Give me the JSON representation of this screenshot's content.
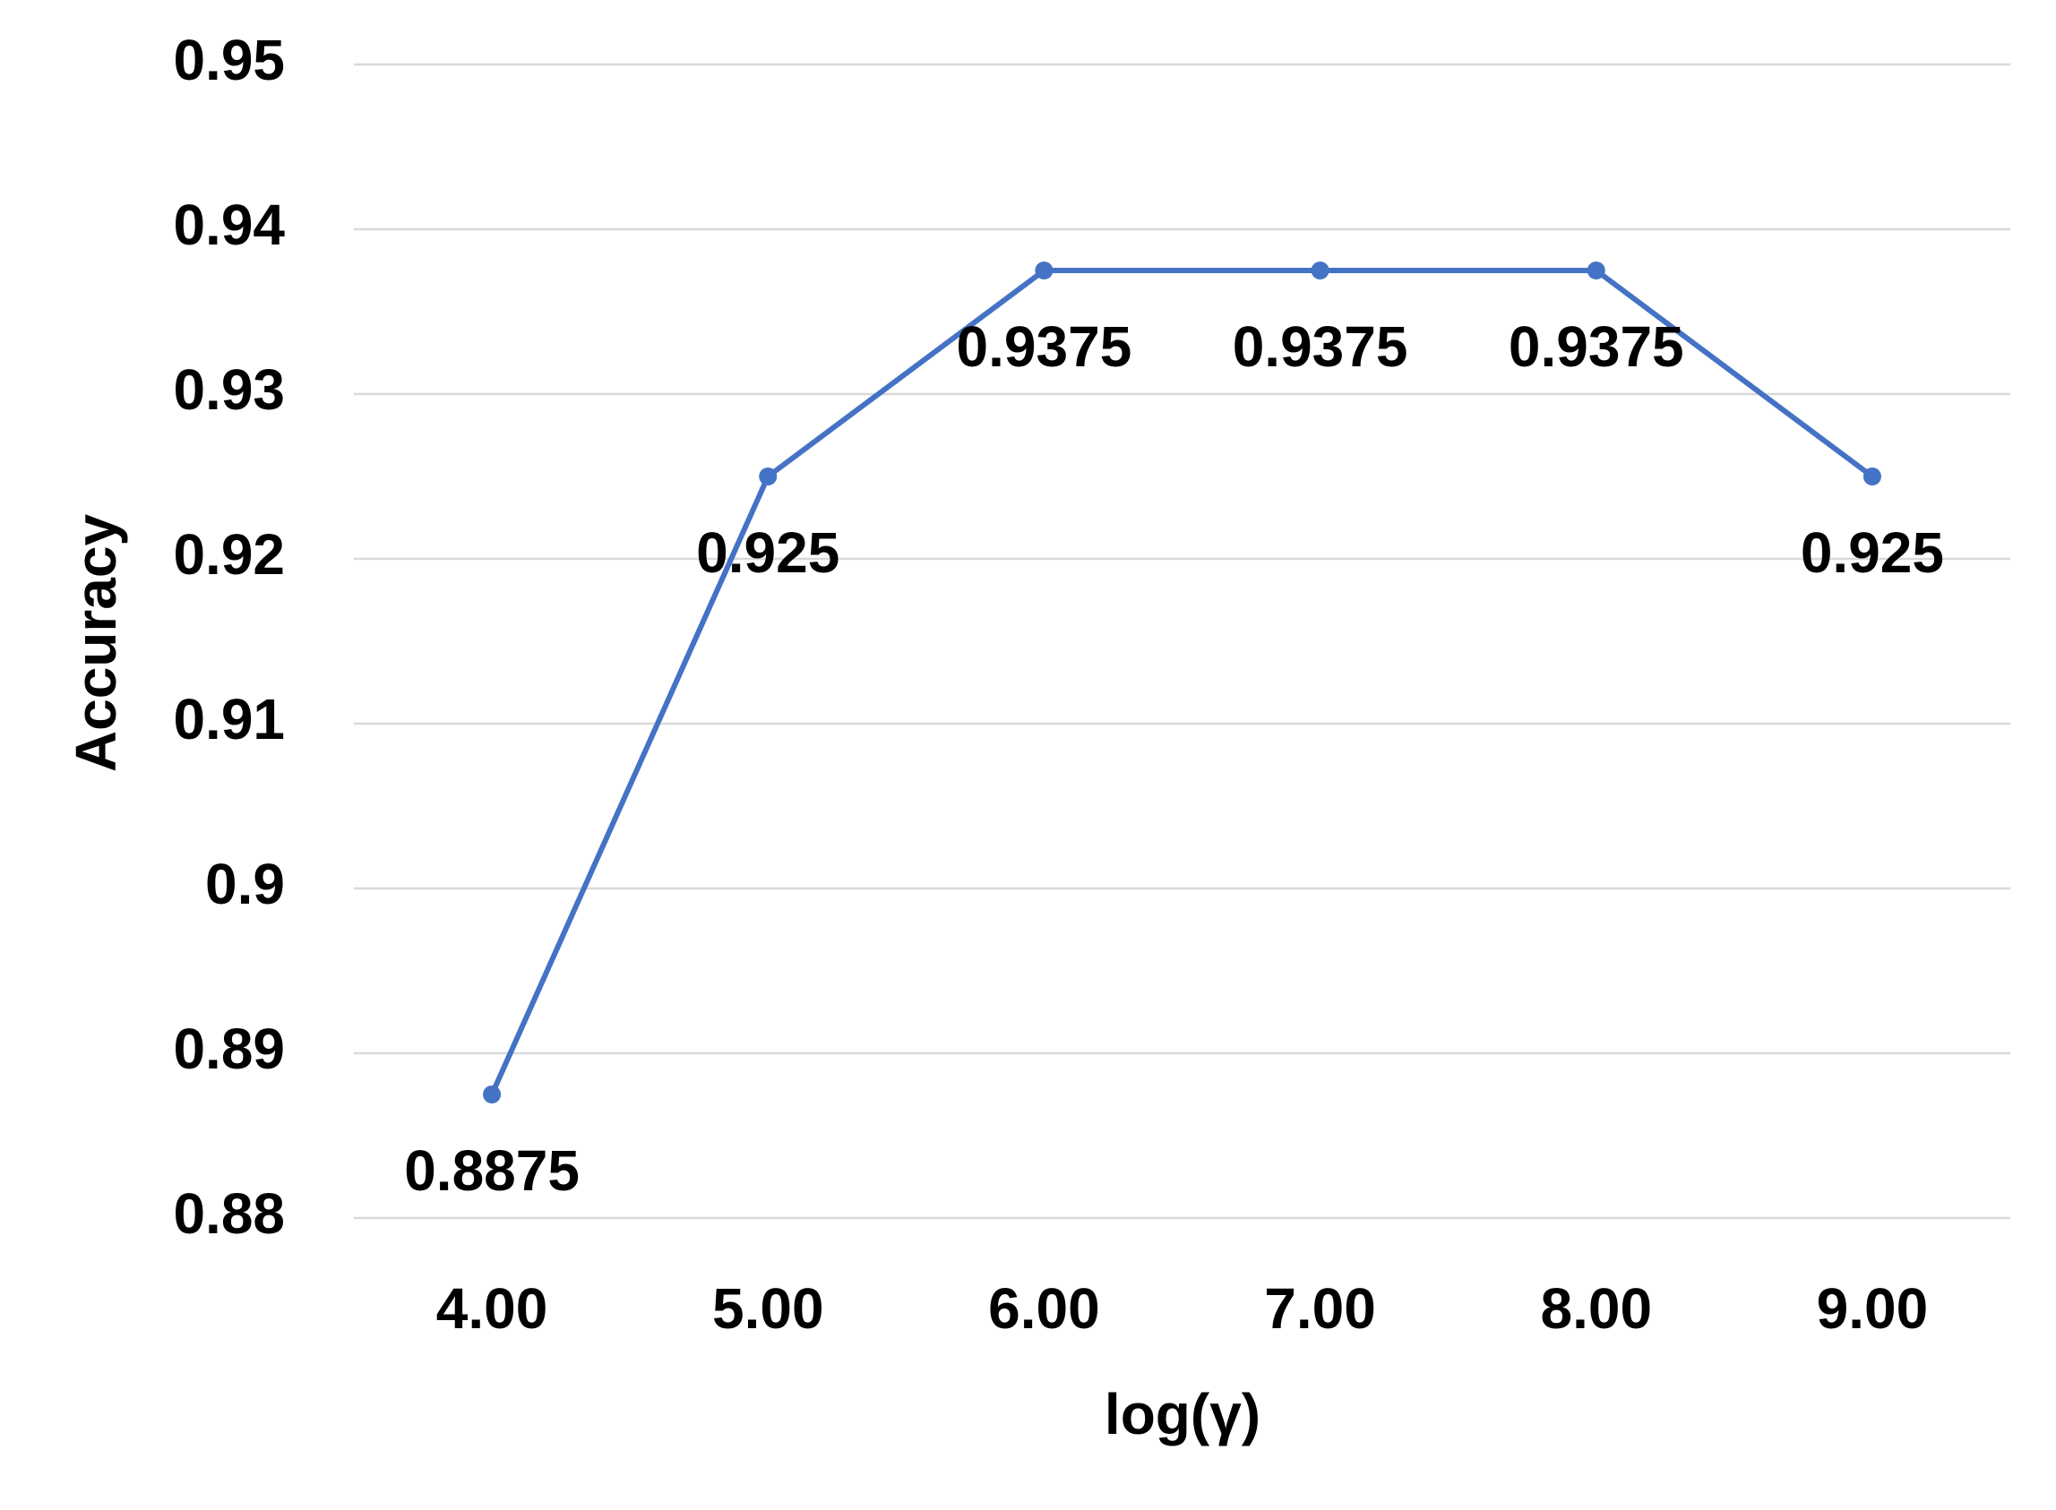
{
  "chart_data": {
    "type": "line",
    "x_label": "log(γ)",
    "y_label": "Accuracy",
    "categories": [
      "4.00",
      "5.00",
      "6.00",
      "7.00",
      "8.00",
      "9.00"
    ],
    "series": [
      {
        "name": "Accuracy",
        "color": "#4472c4",
        "values": [
          0.8875,
          0.925,
          0.9375,
          0.9375,
          0.9375,
          0.925
        ]
      }
    ],
    "ylim": [
      0.88,
      0.95
    ],
    "yticks": [
      0.88,
      0.89,
      0.9,
      0.91,
      0.92,
      0.93,
      0.94,
      0.95
    ],
    "grid": true,
    "data_labels": true
  }
}
